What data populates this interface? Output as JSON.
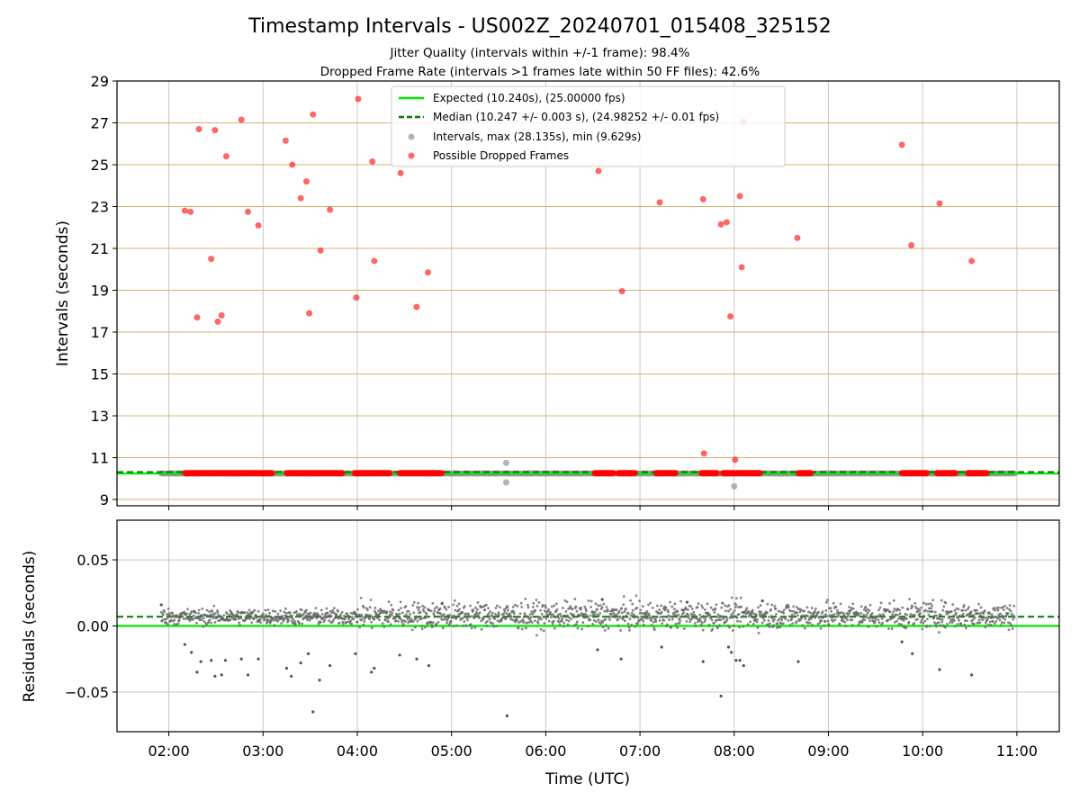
{
  "chart_data": [
    {
      "type": "scatter",
      "panel": "top",
      "title": "Timestamp Intervals - US002Z_20240701_015408_325152",
      "subtitle_lines": [
        "Jitter Quality (intervals within +/-1 frame): 98.4%",
        "Dropped Frame Rate (intervals >1 frames late within 50 FF files): 42.6%"
      ],
      "xlabel": "",
      "ylabel": "Intervals (seconds)",
      "xlim_hours": [
        1.45,
        11.45
      ],
      "ylim": [
        8.7,
        29.0
      ],
      "y_ticks": [
        9,
        11,
        13,
        15,
        17,
        19,
        21,
        23,
        25,
        27,
        29
      ],
      "y_tick_labels": [
        "9",
        "11",
        "13",
        "15",
        "17",
        "19",
        "21",
        "23",
        "25",
        "27",
        "29"
      ],
      "grid": "on",
      "legend_position": "top-center",
      "colors": {
        "expected": "#00e600",
        "median": "#007a00",
        "intervals": "#999999",
        "dropped": "#ff0000",
        "hgrid": "#d4b46e",
        "vgrid": "#c8c8c8"
      },
      "legend": [
        {
          "label": "Expected (10.240s), (25.00000 fps)",
          "kind": "line-solid"
        },
        {
          "label": "Median (10.247 +/- 0.003 s), (24.98252 +/- 0.01 fps)",
          "kind": "line-dashed"
        },
        {
          "label": "Intervals, max (28.135s), min (9.629s)",
          "kind": "dot-gray"
        },
        {
          "label": "Possible Dropped Frames",
          "kind": "dot-red"
        }
      ],
      "expected_line": 10.24,
      "median_line": 10.247,
      "intervals_band": {
        "x_start": 1.92,
        "x_end": 10.98,
        "y": 10.247
      },
      "interval_outliers": [
        [
          5.58,
          10.75
        ],
        [
          5.58,
          9.82
        ],
        [
          8.0,
          9.63
        ]
      ],
      "dropped_clusters": [
        [
          2.17,
          3.1
        ],
        [
          3.25,
          3.85
        ],
        [
          3.97,
          4.35
        ],
        [
          4.45,
          4.9
        ],
        [
          6.52,
          6.72
        ],
        [
          6.77,
          6.95
        ],
        [
          7.17,
          7.38
        ],
        [
          7.65,
          7.82
        ],
        [
          7.88,
          8.0
        ],
        [
          8.02,
          8.28
        ],
        [
          8.68,
          8.82
        ],
        [
          9.78,
          10.05
        ],
        [
          10.15,
          10.35
        ],
        [
          10.48,
          10.68
        ]
      ],
      "dropped_frames": [
        [
          2.17,
          22.8
        ],
        [
          2.23,
          22.75
        ],
        [
          2.3,
          17.7
        ],
        [
          2.32,
          26.7
        ],
        [
          2.45,
          20.5
        ],
        [
          2.49,
          26.65
        ],
        [
          2.52,
          17.5
        ],
        [
          2.56,
          17.8
        ],
        [
          2.61,
          25.4
        ],
        [
          2.77,
          27.15
        ],
        [
          2.84,
          22.75
        ],
        [
          2.95,
          22.1
        ],
        [
          3.24,
          26.15
        ],
        [
          3.31,
          25.0
        ],
        [
          3.4,
          23.4
        ],
        [
          3.46,
          24.2
        ],
        [
          3.49,
          17.9
        ],
        [
          3.53,
          27.4
        ],
        [
          3.61,
          20.9
        ],
        [
          3.71,
          22.85
        ],
        [
          3.99,
          18.65
        ],
        [
          4.01,
          28.14
        ],
        [
          4.16,
          25.15
        ],
        [
          4.18,
          20.4
        ],
        [
          4.46,
          24.6
        ],
        [
          4.63,
          18.2
        ],
        [
          4.75,
          19.85
        ],
        [
          6.56,
          24.7
        ],
        [
          6.81,
          18.95
        ],
        [
          7.21,
          23.2
        ],
        [
          7.67,
          23.35
        ],
        [
          7.68,
          11.2
        ],
        [
          7.86,
          22.15
        ],
        [
          7.92,
          22.25
        ],
        [
          7.96,
          17.75
        ],
        [
          8.01,
          10.9
        ],
        [
          8.06,
          23.5
        ],
        [
          8.08,
          20.1
        ],
        [
          8.1,
          27.05
        ],
        [
          8.67,
          21.5
        ],
        [
          9.78,
          25.95
        ],
        [
          9.88,
          21.15
        ],
        [
          10.18,
          23.15
        ],
        [
          10.52,
          20.4
        ]
      ]
    },
    {
      "type": "scatter",
      "panel": "bottom",
      "xlabel": "Time (UTC)",
      "ylabel": "Residuals (seconds)",
      "xlim_hours": [
        1.45,
        11.45
      ],
      "ylim": [
        -0.08,
        0.08
      ],
      "y_ticks": [
        -0.05,
        0.0,
        0.05
      ],
      "y_tick_labels": [
        "−0.05",
        "0.00",
        "0.05"
      ],
      "x_ticks": [
        2,
        3,
        4,
        5,
        6,
        7,
        8,
        9,
        10,
        11
      ],
      "x_tick_labels": [
        "02:00",
        "03:00",
        "04:00",
        "05:00",
        "06:00",
        "07:00",
        "08:00",
        "09:00",
        "10:00",
        "11:00"
      ],
      "grid": "on",
      "zero_line": 0.0,
      "median_offset": 0.007,
      "residual_band": {
        "x_start": 1.92,
        "x_end": 10.98,
        "center_early": 0.007,
        "spread_early": 0.003,
        "center_late": 0.008,
        "spread_late": 0.005,
        "split_hour": 4.0
      },
      "residual_outliers": [
        [
          1.92,
          0.016
        ],
        [
          2.17,
          -0.014
        ],
        [
          2.24,
          -0.02
        ],
        [
          2.3,
          -0.035
        ],
        [
          2.34,
          -0.027
        ],
        [
          2.45,
          -0.026
        ],
        [
          2.49,
          -0.038
        ],
        [
          2.56,
          -0.037
        ],
        [
          2.6,
          -0.026
        ],
        [
          2.77,
          -0.025
        ],
        [
          2.84,
          -0.037
        ],
        [
          2.95,
          -0.025
        ],
        [
          3.25,
          -0.032
        ],
        [
          3.3,
          -0.038
        ],
        [
          3.4,
          -0.028
        ],
        [
          3.48,
          -0.021
        ],
        [
          3.53,
          -0.065
        ],
        [
          3.6,
          -0.041
        ],
        [
          3.71,
          -0.03
        ],
        [
          3.98,
          -0.021
        ],
        [
          4.15,
          -0.035
        ],
        [
          4.18,
          -0.032
        ],
        [
          4.45,
          -0.022
        ],
        [
          4.63,
          -0.025
        ],
        [
          4.76,
          -0.03
        ],
        [
          5.59,
          -0.068
        ],
        [
          6.55,
          -0.018
        ],
        [
          6.8,
          -0.025
        ],
        [
          7.23,
          -0.016
        ],
        [
          7.67,
          -0.027
        ],
        [
          7.86,
          -0.053
        ],
        [
          7.94,
          -0.016
        ],
        [
          7.97,
          -0.02
        ],
        [
          8.02,
          -0.026
        ],
        [
          8.06,
          -0.026
        ],
        [
          8.1,
          -0.03
        ],
        [
          8.68,
          -0.027
        ],
        [
          9.78,
          -0.012
        ],
        [
          9.89,
          -0.021
        ],
        [
          10.18,
          -0.033
        ],
        [
          10.52,
          -0.037
        ],
        [
          6.6,
          0.02
        ],
        [
          7.5,
          0.018
        ],
        [
          8.3,
          0.019
        ],
        [
          4.9,
          0.017
        ]
      ]
    }
  ]
}
